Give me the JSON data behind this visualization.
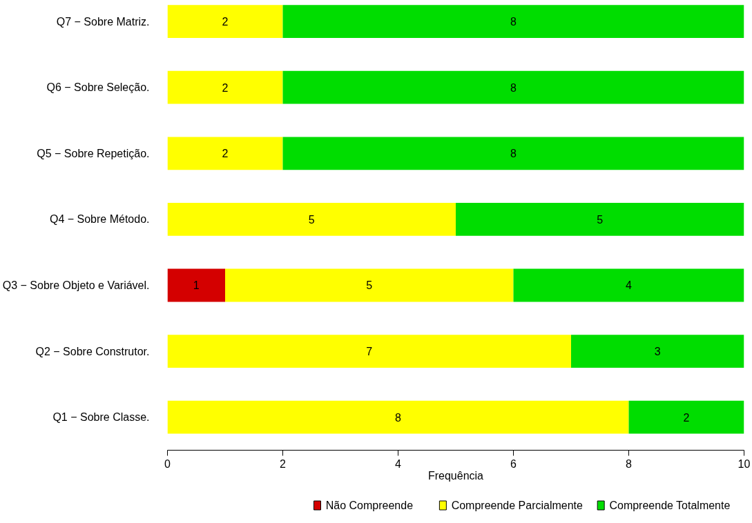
{
  "chart_data": {
    "type": "bar",
    "orientation": "horizontal",
    "stacked": true,
    "xlabel": "Frequência",
    "categories": [
      "Q7 − Sobre Matriz.",
      "Q6 − Sobre Seleção.",
      "Q5 − Sobre Repetição.",
      "Q4 − Sobre Método.",
      "Q3 − Sobre Objeto e Variável.",
      "Q2 − Sobre Construtor.",
      "Q1 − Sobre Classe."
    ],
    "series": [
      {
        "name": "Não Compreende",
        "color": "#d40000",
        "values": [
          null,
          null,
          null,
          null,
          1,
          null,
          null
        ]
      },
      {
        "name": "Compreende Parcialmente",
        "color": "#ffff00",
        "values": [
          2,
          2,
          2,
          5,
          5,
          7,
          8
        ]
      },
      {
        "name": "Compreende Totalmente",
        "color": "#00dd00",
        "values": [
          8,
          8,
          8,
          5,
          4,
          3,
          2
        ]
      }
    ],
    "xlim": [
      0,
      10
    ],
    "xticks": [
      0,
      2,
      4,
      6,
      8,
      10
    ],
    "grid": false,
    "legend": "bottom",
    "data_labels": true
  }
}
